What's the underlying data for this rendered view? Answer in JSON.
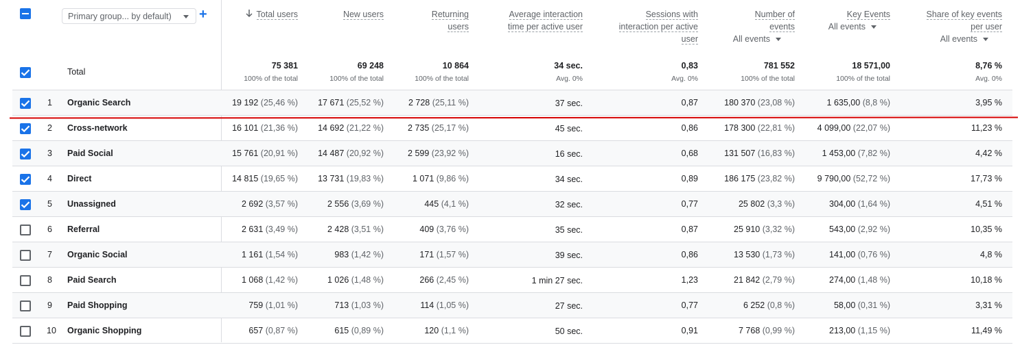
{
  "header": {
    "select_all_state": "indeterminate",
    "dimension_dropdown": "Primary group... by default)",
    "columns": [
      {
        "key": "total_users",
        "title": [
          "Total users"
        ],
        "sort": "desc"
      },
      {
        "key": "new_users",
        "title": [
          "New users"
        ]
      },
      {
        "key": "returning_users",
        "title": [
          "Returning",
          "users"
        ]
      },
      {
        "key": "avg_time",
        "title": [
          "Average interaction",
          "time per active user"
        ]
      },
      {
        "key": "sessions",
        "title": [
          "Sessions with",
          "interaction per active",
          "user"
        ]
      },
      {
        "key": "events",
        "title": [
          "Number of",
          "events"
        ],
        "filter": "All events"
      },
      {
        "key": "key_events",
        "title": [
          "Key Events"
        ],
        "filter": "All events"
      },
      {
        "key": "share",
        "title": [
          "Share of key events",
          "per user"
        ],
        "filter": "All events"
      }
    ]
  },
  "totals": {
    "label": "Total",
    "checked": true,
    "values": [
      "75 381",
      "69 248",
      "10 864",
      "34 sec.",
      "0,83",
      "781 552",
      "18 571,00",
      "8,76 %"
    ],
    "subs": [
      "100% of the total",
      "100% of the total",
      "100% of the total",
      "Avg. 0%",
      "Avg. 0%",
      "100% of the total",
      "100% of the total",
      "Avg. 0%"
    ]
  },
  "rows": [
    {
      "n": "1",
      "name": "Organic Search",
      "checked": true,
      "cells": [
        [
          "19 192",
          "(25,46 %)"
        ],
        [
          "17 671",
          "(25,52 %)"
        ],
        [
          "2 728",
          "(25,11 %)"
        ],
        [
          "37 sec.",
          ""
        ],
        [
          "0,87",
          ""
        ],
        [
          "180 370",
          "(23,08 %)"
        ],
        [
          "1 635,00",
          "(8,8 %)"
        ],
        [
          "3,95 %",
          ""
        ]
      ]
    },
    {
      "n": "2",
      "name": "Cross-network",
      "checked": true,
      "cells": [
        [
          "16 101",
          "(21,36 %)"
        ],
        [
          "14 692",
          "(21,22 %)"
        ],
        [
          "2 735",
          "(25,17 %)"
        ],
        [
          "45 sec.",
          ""
        ],
        [
          "0,86",
          ""
        ],
        [
          "178 300",
          "(22,81 %)"
        ],
        [
          "4 099,00",
          "(22,07 %)"
        ],
        [
          "11,23 %",
          ""
        ]
      ]
    },
    {
      "n": "3",
      "name": "Paid Social",
      "checked": true,
      "cells": [
        [
          "15 761",
          "(20,91 %)"
        ],
        [
          "14 487",
          "(20,92 %)"
        ],
        [
          "2 599",
          "(23,92 %)"
        ],
        [
          "16 sec.",
          ""
        ],
        [
          "0,68",
          ""
        ],
        [
          "131 507",
          "(16,83 %)"
        ],
        [
          "1 453,00",
          "(7,82 %)"
        ],
        [
          "4,42 %",
          ""
        ]
      ]
    },
    {
      "n": "4",
      "name": "Direct",
      "checked": true,
      "cells": [
        [
          "14 815",
          "(19,65 %)"
        ],
        [
          "13 731",
          "(19,83 %)"
        ],
        [
          "1 071",
          "(9,86 %)"
        ],
        [
          "34 sec.",
          ""
        ],
        [
          "0,89",
          ""
        ],
        [
          "186 175",
          "(23,82 %)"
        ],
        [
          "9 790,00",
          "(52,72 %)"
        ],
        [
          "17,73 %",
          ""
        ]
      ]
    },
    {
      "n": "5",
      "name": "Unassigned",
      "checked": true,
      "cells": [
        [
          "2 692",
          "(3,57 %)"
        ],
        [
          "2 556",
          "(3,69 %)"
        ],
        [
          "445",
          "(4,1 %)"
        ],
        [
          "32 sec.",
          ""
        ],
        [
          "0,77",
          ""
        ],
        [
          "25 802",
          "(3,3 %)"
        ],
        [
          "304,00",
          "(1,64 %)"
        ],
        [
          "4,51 %",
          ""
        ]
      ]
    },
    {
      "n": "6",
      "name": "Referral",
      "checked": false,
      "cells": [
        [
          "2 631",
          "(3,49 %)"
        ],
        [
          "2 428",
          "(3,51 %)"
        ],
        [
          "409",
          "(3,76 %)"
        ],
        [
          "35 sec.",
          ""
        ],
        [
          "0,87",
          ""
        ],
        [
          "25 910",
          "(3,32 %)"
        ],
        [
          "543,00",
          "(2,92 %)"
        ],
        [
          "10,35 %",
          ""
        ]
      ]
    },
    {
      "n": "7",
      "name": "Organic Social",
      "checked": false,
      "cells": [
        [
          "1 161",
          "(1,54 %)"
        ],
        [
          "983",
          "(1,42 %)"
        ],
        [
          "171",
          "(1,57 %)"
        ],
        [
          "39 sec.",
          ""
        ],
        [
          "0,86",
          ""
        ],
        [
          "13 530",
          "(1,73 %)"
        ],
        [
          "141,00",
          "(0,76 %)"
        ],
        [
          "4,8 %",
          ""
        ]
      ]
    },
    {
      "n": "8",
      "name": "Paid Search",
      "checked": false,
      "cells": [
        [
          "1 068",
          "(1,42 %)"
        ],
        [
          "1 026",
          "(1,48 %)"
        ],
        [
          "266",
          "(2,45 %)"
        ],
        [
          "1 min 27 sec.",
          ""
        ],
        [
          "1,23",
          ""
        ],
        [
          "21 842",
          "(2,79 %)"
        ],
        [
          "274,00",
          "(1,48 %)"
        ],
        [
          "10,18 %",
          ""
        ]
      ]
    },
    {
      "n": "9",
      "name": "Paid Shopping",
      "checked": false,
      "cells": [
        [
          "759",
          "(1,01 %)"
        ],
        [
          "713",
          "(1,03 %)"
        ],
        [
          "114",
          "(1,05 %)"
        ],
        [
          "27 sec.",
          ""
        ],
        [
          "0,77",
          ""
        ],
        [
          "6 252",
          "(0,8 %)"
        ],
        [
          "58,00",
          "(0,31 %)"
        ],
        [
          "3,31 %",
          ""
        ]
      ]
    },
    {
      "n": "10",
      "name": "Organic Shopping",
      "checked": false,
      "cells": [
        [
          "657",
          "(0,87 %)"
        ],
        [
          "615",
          "(0,89 %)"
        ],
        [
          "120",
          "(1,1 %)"
        ],
        [
          "50 sec.",
          ""
        ],
        [
          "0,91",
          ""
        ],
        [
          "7 768",
          "(0,99 %)"
        ],
        [
          "213,00",
          "(1,15 %)"
        ],
        [
          "11,49 %",
          ""
        ]
      ]
    }
  ],
  "colors": {
    "accent": "#1a73e8",
    "highlight_line": "#d50000"
  }
}
